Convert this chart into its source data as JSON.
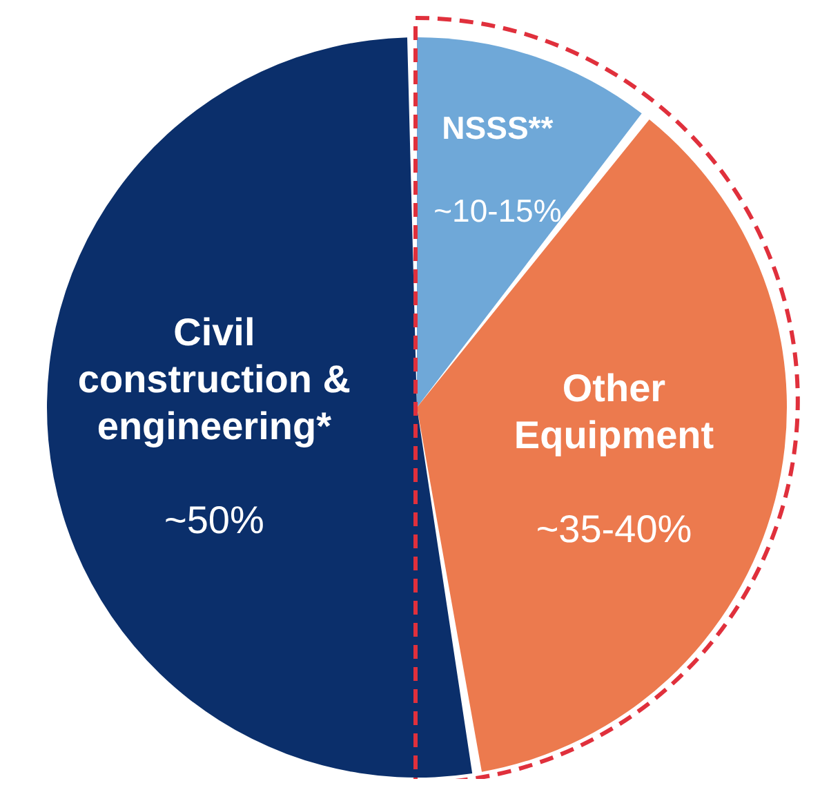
{
  "chart_data": {
    "type": "pie",
    "categories": [
      "NSSS**",
      "Other Equipment",
      "Civil construction & engineering*"
    ],
    "values": [
      10,
      35,
      50
    ],
    "value_labels": [
      "~10-15%",
      "~35-40%",
      "~50%"
    ],
    "colors": [
      "#6fa8d8",
      "#ec7a4e",
      "#0b2f6b"
    ]
  }
}
